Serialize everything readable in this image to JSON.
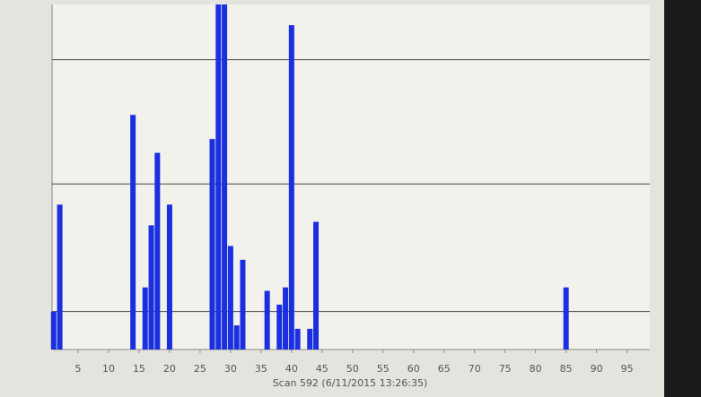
{
  "chart_data": {
    "type": "bar",
    "xlabel": "Scan 592 (6/11/2015 13:26:35)",
    "x": [
      1,
      2,
      14,
      16,
      17,
      18,
      20,
      27,
      28,
      29,
      30,
      31,
      32,
      36,
      38,
      39,
      40,
      41,
      43,
      44,
      85
    ],
    "values": [
      11,
      42,
      68,
      18,
      36,
      57,
      42,
      61,
      100,
      100,
      30,
      7,
      26,
      17,
      13,
      18,
      94,
      6,
      6,
      37,
      18
    ],
    "color": "#1a2fe0",
    "xlim": [
      0,
      98
    ],
    "xticks": [
      5,
      10,
      15,
      20,
      25,
      30,
      35,
      40,
      45,
      50,
      55,
      60,
      65,
      70,
      75,
      80,
      85,
      90,
      95
    ],
    "ylim": [
      0,
      100
    ],
    "yticks": [
      11,
      48,
      84
    ],
    "grid": true
  }
}
